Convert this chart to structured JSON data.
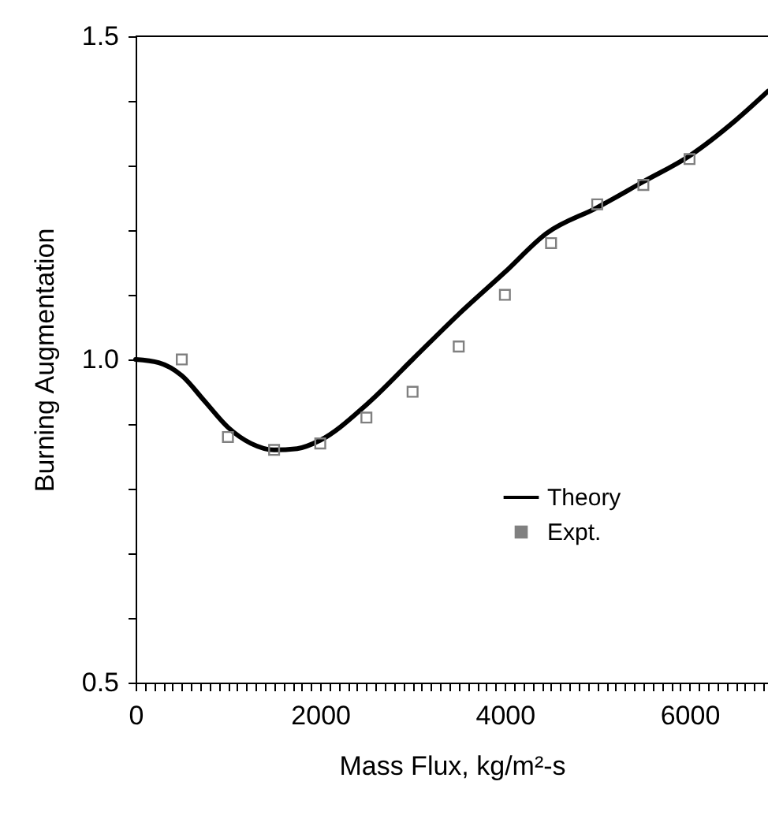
{
  "chart_data": {
    "type": "line",
    "xlabel": "Mass Flux, kg/m²-s",
    "ylabel": "Burning Augmentation",
    "xlim": [
      0,
      6850
    ],
    "ylim": [
      0.5,
      1.5
    ],
    "xticks": [
      0,
      {
        "value": 100,
        "label": null
      },
      {
        "value": 200,
        "label": null
      },
      {
        "value": 300,
        "label": null
      },
      {
        "value": 400,
        "label": null
      },
      {
        "value": 500,
        "label": null
      },
      {
        "value": 600,
        "label": null
      },
      {
        "value": 700,
        "label": null
      },
      {
        "value": 800,
        "label": null
      },
      {
        "value": 900,
        "label": null
      },
      {
        "value": 1000,
        "label": null
      },
      {
        "value": 1100,
        "label": null
      },
      {
        "value": 1200,
        "label": null
      },
      {
        "value": 1300,
        "label": null
      },
      {
        "value": 1400,
        "label": null
      },
      {
        "value": 1500,
        "label": null
      },
      {
        "value": 1600,
        "label": null
      },
      {
        "value": 1700,
        "label": null
      },
      {
        "value": 1800,
        "label": null
      },
      {
        "value": 1900,
        "label": null
      },
      2000,
      {
        "value": 2100,
        "label": null
      },
      {
        "value": 2200,
        "label": null
      },
      {
        "value": 2300,
        "label": null
      },
      {
        "value": 2400,
        "label": null
      },
      {
        "value": 2500,
        "label": null
      },
      {
        "value": 2600,
        "label": null
      },
      {
        "value": 2700,
        "label": null
      },
      {
        "value": 2800,
        "label": null
      },
      {
        "value": 2900,
        "label": null
      },
      {
        "value": 3000,
        "label": null
      },
      {
        "value": 3100,
        "label": null
      },
      {
        "value": 3200,
        "label": null
      },
      {
        "value": 3300,
        "label": null
      },
      {
        "value": 3400,
        "label": null
      },
      {
        "value": 3500,
        "label": null
      },
      {
        "value": 3600,
        "label": null
      },
      {
        "value": 3700,
        "label": null
      },
      {
        "value": 3800,
        "label": null
      },
      {
        "value": 3900,
        "label": null
      },
      4000,
      {
        "value": 4100,
        "label": null
      },
      {
        "value": 4200,
        "label": null
      },
      {
        "value": 4300,
        "label": null
      },
      {
        "value": 4400,
        "label": null
      },
      {
        "value": 4500,
        "label": null
      },
      {
        "value": 4600,
        "label": null
      },
      {
        "value": 4700,
        "label": null
      },
      {
        "value": 4800,
        "label": null
      },
      {
        "value": 4900,
        "label": null
      },
      {
        "value": 5000,
        "label": null
      },
      {
        "value": 5100,
        "label": null
      },
      {
        "value": 5200,
        "label": null
      },
      {
        "value": 5300,
        "label": null
      },
      {
        "value": 5400,
        "label": null
      },
      {
        "value": 5500,
        "label": null
      },
      {
        "value": 5600,
        "label": null
      },
      {
        "value": 5700,
        "label": null
      },
      {
        "value": 5800,
        "label": null
      },
      {
        "value": 5900,
        "label": null
      },
      6000,
      {
        "value": 6100,
        "label": null
      },
      {
        "value": 6200,
        "label": null
      },
      {
        "value": 6300,
        "label": null
      },
      {
        "value": 6400,
        "label": null
      },
      {
        "value": 6500,
        "label": null
      },
      {
        "value": 6600,
        "label": null
      },
      {
        "value": 6700,
        "label": null
      },
      {
        "value": 6800,
        "label": null
      }
    ],
    "yticks": [
      0.5,
      {
        "value": 0.6,
        "label": null
      },
      {
        "value": 0.7,
        "label": null
      },
      {
        "value": 0.8,
        "label": null
      },
      {
        "value": 0.9,
        "label": null
      },
      {
        "value": 1,
        "label": "1.0"
      },
      {
        "value": 1.1,
        "label": null
      },
      {
        "value": 1.2,
        "label": null
      },
      {
        "value": 1.3,
        "label": null
      },
      {
        "value": 1.4,
        "label": null
      },
      1.5
    ],
    "grid": false,
    "legend": "right",
    "line_style": "solid",
    "series": [
      {
        "name": "Theory",
        "color": "#000000",
        "marker": "none",
        "x": [
          0,
          250,
          500,
          750,
          1000,
          1250,
          1500,
          1750,
          2000,
          2500,
          3000,
          3500,
          4000,
          4450,
          5000,
          5500,
          6000,
          6500,
          6850
        ],
        "values": [
          1.0,
          0.995,
          0.975,
          0.935,
          0.895,
          0.87,
          0.86,
          0.862,
          0.875,
          0.93,
          1.0,
          1.07,
          1.135,
          1.195,
          1.235,
          1.275,
          1.315,
          1.37,
          1.415
        ]
      },
      {
        "name": "Expt.",
        "type": "scatter",
        "color": "#808080",
        "marker": "square",
        "x": [
          500,
          1000,
          1500,
          2000,
          2500,
          3000,
          3500,
          4000,
          4500,
          5000,
          5500,
          6000
        ],
        "values": [
          1.0,
          0.88,
          0.86,
          0.87,
          0.91,
          0.95,
          1.02,
          1.1,
          1.18,
          1.24,
          1.27,
          1.31
        ]
      }
    ]
  }
}
